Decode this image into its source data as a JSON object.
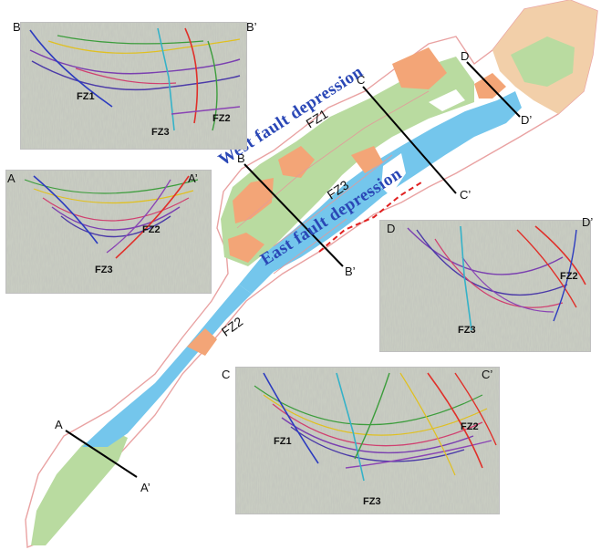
{
  "map": {
    "depressions": {
      "west": "West fault depression",
      "east": "East fault depression"
    },
    "fault_zones": [
      "FZ1",
      "FZ2",
      "FZ3"
    ],
    "section_endpoints": {
      "A": "A",
      "A_prime": "A’",
      "B": "B",
      "B_prime": "B’",
      "C": "C",
      "C_prime": "C’",
      "D": "D",
      "D_prime": "D’"
    },
    "colors": {
      "basin_fill_green": "#b9dba0",
      "basin_fill_blue": "#74c6ec",
      "basin_fill_orange": "#f3a577",
      "basin_fill_tan": "#f2cfa9",
      "basin_outline": "#e88",
      "boundary_dashed": "#e02020",
      "label_blue": "#2a47b6"
    }
  },
  "panels": {
    "B": {
      "left": "B",
      "right": "B’",
      "faults": [
        "FZ1",
        "FZ3",
        "FZ2"
      ]
    },
    "A": {
      "left": "A",
      "right": "A’",
      "faults": [
        "FZ2",
        "FZ3"
      ]
    },
    "D": {
      "left": "D",
      "right": "D’",
      "faults": [
        "FZ2",
        "FZ3"
      ]
    },
    "C": {
      "left": "C",
      "right": "C’",
      "faults": [
        "FZ1",
        "FZ2",
        "FZ3"
      ]
    }
  }
}
